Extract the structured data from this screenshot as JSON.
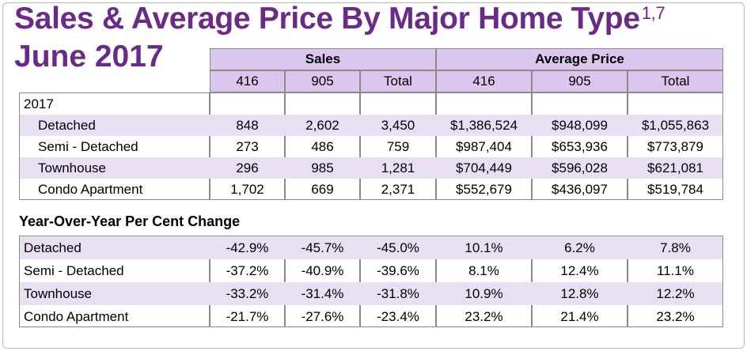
{
  "title": {
    "main": "Sales & Average Price By Major Home Type",
    "superscript": "1,7",
    "subtitle": "June 2017"
  },
  "header": {
    "sales_label": "Sales",
    "avg_price_label": "Average Price",
    "columns": [
      "416",
      "905",
      "Total",
      "416",
      "905",
      "Total"
    ]
  },
  "current": {
    "year": "2017",
    "rows": [
      {
        "type": "Detached",
        "values": [
          "848",
          "2,602",
          "3,450",
          "$1,386,524",
          "$948,099",
          "$1,055,863"
        ]
      },
      {
        "type": "Semi - Detached",
        "values": [
          "273",
          "486",
          "759",
          "$987,404",
          "$653,936",
          "$773,879"
        ]
      },
      {
        "type": "Townhouse",
        "values": [
          "296",
          "985",
          "1,281",
          "$704,449",
          "$596,028",
          "$621,081"
        ]
      },
      {
        "type": "Condo Apartment",
        "values": [
          "1,702",
          "669",
          "2,371",
          "$552,679",
          "$436,097",
          "$519,784"
        ]
      }
    ]
  },
  "yoy": {
    "heading": "Year-Over-Year Per Cent Change",
    "rows": [
      {
        "type": "Detached",
        "values": [
          "-42.9%",
          "-45.7%",
          "-45.0%",
          "10.1%",
          "6.2%",
          "7.8%"
        ]
      },
      {
        "type": "Semi - Detached",
        "values": [
          "-37.2%",
          "-40.9%",
          "-39.6%",
          "8.1%",
          "12.4%",
          "11.1%"
        ]
      },
      {
        "type": "Townhouse",
        "values": [
          "-33.2%",
          "-31.4%",
          "-31.8%",
          "10.9%",
          "12.8%",
          "12.2%"
        ]
      },
      {
        "type": "Condo Apartment",
        "values": [
          "-21.7%",
          "-27.6%",
          "-23.4%",
          "23.2%",
          "21.4%",
          "23.2%"
        ]
      }
    ]
  }
}
